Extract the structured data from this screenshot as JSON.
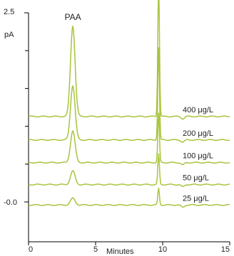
{
  "chart_data": {
    "type": "line",
    "xlabel": "Minutes",
    "ylabel": "pA",
    "xlim": [
      0,
      15
    ],
    "ylim": [
      -0.5,
      2.5
    ],
    "x_ticks": [
      "0",
      "5",
      "10",
      "15"
    ],
    "y_tick_labels": [
      {
        "value": 2.5,
        "label": "2.5"
      },
      {
        "value": -0.0,
        "label": "-0.0"
      }
    ],
    "y_minor_ticks": [
      2.0,
      1.5,
      1.0,
      0.5
    ],
    "peak_labels": [
      {
        "text": "PAA",
        "x": 3.3
      }
    ],
    "line_color": "#a7c43c",
    "peaks_common": {
      "paa_center": 3.3,
      "paa_width": 0.17,
      "second_center": 9.7,
      "second_width": 0.06,
      "dip_center": 11.5
    },
    "series": [
      {
        "name": "400 μg/L",
        "baseline": 1.13,
        "paa_height": 1.2,
        "second_height": 1.8
      },
      {
        "name": "200 μg/L",
        "baseline": 0.82,
        "paa_height": 0.72,
        "second_height": 1.22
      },
      {
        "name": "100 μg/L",
        "baseline": 0.52,
        "paa_height": 0.42,
        "second_height": 0.65
      },
      {
        "name": "50 μg/L",
        "baseline": 0.23,
        "paa_height": 0.18,
        "second_height": 0.4
      },
      {
        "name": "25 μg/L",
        "baseline": -0.04,
        "paa_height": 0.09,
        "second_height": 0.22
      }
    ]
  }
}
